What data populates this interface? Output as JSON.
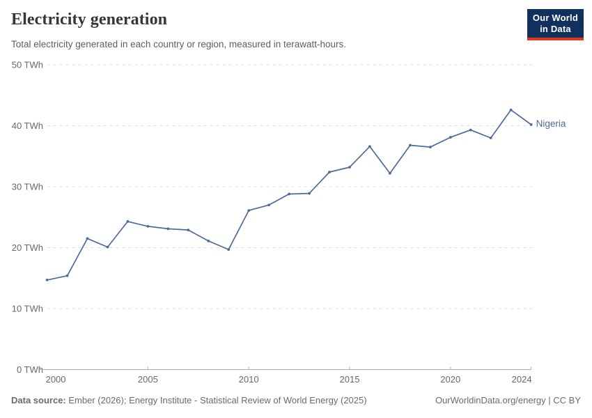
{
  "header": {
    "title": "Electricity generation",
    "subtitle": "Total electricity generated in each country or region, measured in terawatt-hours.",
    "logo": {
      "line1": "Our World",
      "line2": "in Data"
    }
  },
  "footer": {
    "sources_label": "Data source:",
    "sources_text": " Ember (2026); Energy Institute - Statistical Review of World Energy (2025)",
    "link_text": "OurWorldinData.org/energy | CC BY"
  },
  "colors": {
    "series_blue": "#4C6A9C",
    "logo_navy": "#11305d",
    "logo_red": "#e0361d",
    "gridline": "#dcdcdc",
    "axis": "#adadad",
    "tick_text": "#686868",
    "title_text": "#363636",
    "subtitle_text": "#5e5e5e",
    "footer_text": "#6b6b6b"
  },
  "chart_data": {
    "type": "line",
    "title": "Electricity generation",
    "xlabel": "",
    "ylabel": "",
    "unit": "TWh",
    "ylim": [
      0,
      50
    ],
    "yticks": [
      0,
      10,
      20,
      30,
      40,
      50
    ],
    "ytick_format": "{v} TWh",
    "xticks": [
      2000,
      2005,
      2010,
      2015,
      2020,
      2024
    ],
    "grid": "dashed horizontal gridlines",
    "legend_position": "end-of-line label",
    "x": [
      2000,
      2001,
      2002,
      2003,
      2004,
      2005,
      2006,
      2007,
      2008,
      2009,
      2010,
      2011,
      2012,
      2013,
      2014,
      2015,
      2016,
      2017,
      2018,
      2019,
      2020,
      2021,
      2022,
      2023,
      2024
    ],
    "series": [
      {
        "name": "Nigeria",
        "color": "#4C6A9C",
        "values": [
          14.7,
          15.4,
          21.5,
          20.1,
          24.3,
          23.5,
          23.1,
          22.9,
          21.1,
          19.7,
          26.1,
          27.0,
          28.8,
          28.9,
          32.4,
          33.2,
          36.6,
          32.2,
          36.8,
          36.5,
          38.1,
          39.3,
          38.0,
          42.6,
          40.2
        ]
      }
    ]
  }
}
